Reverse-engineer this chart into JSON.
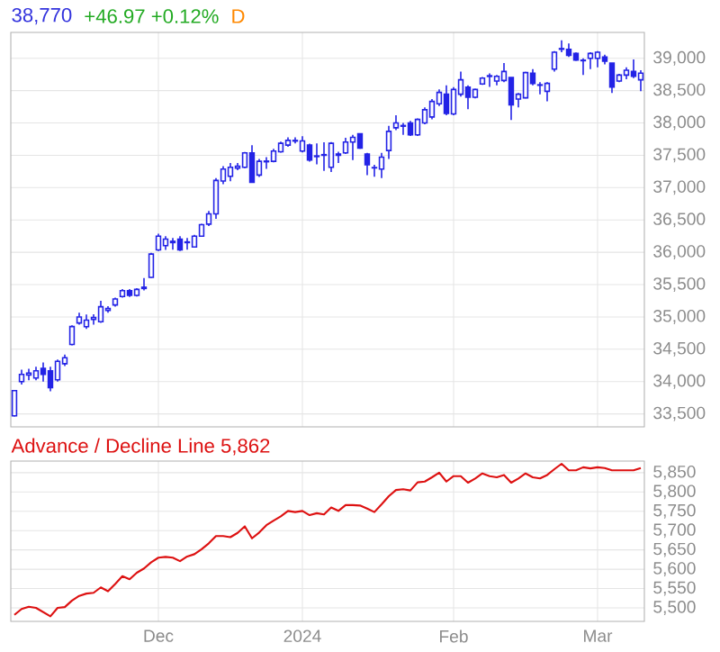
{
  "chart_data": [
    {
      "type": "candlestick",
      "title": "38,770",
      "subtitle": "+46.97 +0.12%",
      "annotations": [
        "D"
      ],
      "color": "#2323e6",
      "categories": [
        null,
        null,
        null,
        null,
        null,
        null,
        null,
        null,
        null,
        null,
        null,
        null,
        null,
        null,
        null,
        null,
        null,
        null,
        null,
        null,
        null,
        null,
        null,
        null,
        null,
        null,
        null,
        null,
        null,
        null,
        null,
        null,
        null,
        null,
        null,
        null,
        null,
        null,
        null,
        null,
        null,
        null,
        null,
        null,
        null,
        null,
        null,
        null,
        null,
        null,
        null,
        null,
        null,
        null,
        null,
        null,
        null,
        null,
        null,
        null,
        null,
        null,
        null,
        null,
        null,
        null,
        null,
        null,
        null,
        null,
        null,
        null,
        null,
        null,
        null,
        null,
        null,
        null,
        null,
        null,
        null,
        null,
        null,
        null,
        null,
        null,
        null,
        null
      ],
      "ohlc": [
        [
          33470,
          33870,
          33460,
          33860
        ],
        [
          34000,
          34185,
          33953,
          34111
        ],
        [
          34100,
          34200,
          34020,
          34130
        ],
        [
          34055,
          34230,
          34020,
          34166
        ],
        [
          34204,
          34296,
          34000,
          34111
        ],
        [
          34166,
          34230,
          33850,
          33907
        ],
        [
          34027,
          34342,
          34000,
          34314
        ],
        [
          34277,
          34416,
          34240,
          34370
        ],
        [
          34574,
          34870,
          34560,
          34851
        ],
        [
          34907,
          35065,
          34880,
          35000
        ],
        [
          34850,
          35037,
          34815,
          34950
        ],
        [
          34960,
          35040,
          34880,
          34990
        ],
        [
          34925,
          35250,
          34910,
          35157
        ],
        [
          35100,
          35165,
          35065,
          35130
        ],
        [
          35185,
          35300,
          35160,
          35277
        ],
        [
          35315,
          35430,
          35300,
          35407
        ],
        [
          35407,
          35430,
          35310,
          35333
        ],
        [
          35333,
          35445,
          35315,
          35426
        ],
        [
          35440,
          35600,
          35410,
          35460
        ],
        [
          35611,
          35990,
          35600,
          35972
        ],
        [
          36037,
          36287,
          36018,
          36250
        ],
        [
          36102,
          36250,
          36037,
          36204
        ],
        [
          36150,
          36220,
          36040,
          36170
        ],
        [
          36204,
          36250,
          36020,
          36037
        ],
        [
          36160,
          36220,
          36040,
          36150
        ],
        [
          36083,
          36270,
          36070,
          36250
        ],
        [
          36250,
          36440,
          36240,
          36426
        ],
        [
          36435,
          36640,
          36407,
          36593
        ],
        [
          36593,
          37148,
          36518,
          37111
        ],
        [
          37102,
          37333,
          37055,
          37287
        ],
        [
          37175,
          37380,
          37100,
          37315
        ],
        [
          37300,
          37380,
          37270,
          37330
        ],
        [
          37315,
          37550,
          37300,
          37537
        ],
        [
          37537,
          37657,
          37080,
          37083
        ],
        [
          37194,
          37444,
          37166,
          37407
        ],
        [
          37400,
          37470,
          37290,
          37410
        ],
        [
          37407,
          37600,
          37390,
          37565
        ],
        [
          37555,
          37710,
          37540,
          37685
        ],
        [
          37657,
          37778,
          37630,
          37731
        ],
        [
          37720,
          37778,
          37685,
          37730
        ],
        [
          37565,
          37796,
          37546,
          37722
        ],
        [
          37657,
          37680,
          37400,
          37426
        ],
        [
          37480,
          37685,
          37360,
          37490
        ],
        [
          37500,
          37700,
          37260,
          37510
        ],
        [
          37315,
          37704,
          37240,
          37685
        ],
        [
          37500,
          37555,
          37380,
          37520
        ],
        [
          37537,
          37770,
          37520,
          37704
        ],
        [
          37704,
          37815,
          37426,
          37778
        ],
        [
          37833,
          37840,
          37600,
          37611
        ],
        [
          37518,
          37537,
          37194,
          37352
        ],
        [
          37310,
          37352,
          37167,
          37305
        ],
        [
          37287,
          37537,
          37148,
          37472
        ],
        [
          37574,
          37954,
          37444,
          37870
        ],
        [
          37926,
          38120,
          37890,
          38000
        ],
        [
          37960,
          38000,
          37815,
          37950
        ],
        [
          38000,
          38030,
          37800,
          37815
        ],
        [
          37815,
          38070,
          37800,
          38055
        ],
        [
          38000,
          38240,
          37980,
          38204
        ],
        [
          38093,
          38370,
          38055,
          38333
        ],
        [
          38296,
          38518,
          38260,
          38472
        ],
        [
          38444,
          38583,
          38120,
          38148
        ],
        [
          38139,
          38555,
          38120,
          38518
        ],
        [
          38444,
          38796,
          38407,
          38667
        ],
        [
          38555,
          38583,
          38213,
          38398
        ],
        [
          38398,
          38530,
          38380,
          38518
        ],
        [
          38602,
          38710,
          38590,
          38694
        ],
        [
          38720,
          38768,
          38556,
          38730
        ],
        [
          38648,
          38741,
          38583,
          38722
        ],
        [
          38657,
          38926,
          38630,
          38796
        ],
        [
          38704,
          38704,
          38046,
          38278
        ],
        [
          38370,
          38463,
          38240,
          38444
        ],
        [
          38389,
          38790,
          38380,
          38778
        ],
        [
          38768,
          38833,
          38583,
          38611
        ],
        [
          38590,
          38630,
          38444,
          38583
        ],
        [
          38490,
          38630,
          38333,
          38611
        ],
        [
          38833,
          39111,
          38796,
          39093
        ],
        [
          39140,
          39278,
          39093,
          39150
        ],
        [
          39139,
          39231,
          39019,
          39046
        ],
        [
          39074,
          39090,
          38960,
          38972
        ],
        [
          38970,
          39000,
          38741,
          38963
        ],
        [
          39000,
          39093,
          38833,
          39074
        ],
        [
          39000,
          39111,
          38861,
          39093
        ],
        [
          39019,
          39056,
          38907,
          38954
        ],
        [
          38926,
          38926,
          38463,
          38556
        ],
        [
          38648,
          38760,
          38630,
          38741
        ],
        [
          38741,
          38861,
          38676,
          38815
        ],
        [
          38796,
          38981,
          38694,
          38722
        ],
        [
          38667,
          38815,
          38490,
          38770
        ]
      ],
      "ylim": [
        33300,
        39400
      ],
      "yticks": [
        {
          "value": 33500,
          "label": "33,500"
        },
        {
          "value": 34000,
          "label": "34,000"
        },
        {
          "value": 34500,
          "label": "34,500"
        },
        {
          "value": 35000,
          "label": "35,000"
        },
        {
          "value": 35500,
          "label": "35,500"
        },
        {
          "value": 36000,
          "label": "36,000"
        },
        {
          "value": 36500,
          "label": "36,500"
        },
        {
          "value": 37000,
          "label": "37,000"
        },
        {
          "value": 37500,
          "label": "37,500"
        },
        {
          "value": 38000,
          "label": "38,000"
        },
        {
          "value": 38500,
          "label": "38,500"
        },
        {
          "value": 39000,
          "label": "39,000"
        }
      ],
      "grid": true,
      "tick_labels": "y"
    },
    {
      "type": "line",
      "title": "Advance / Decline Line 5,862",
      "color": "#dd1111",
      "categories": [
        null,
        null,
        null,
        null,
        null,
        null,
        null,
        null,
        null,
        null,
        null,
        null,
        null,
        null,
        null,
        null,
        null,
        null,
        null,
        null,
        "Dec",
        null,
        null,
        null,
        null,
        null,
        null,
        null,
        null,
        null,
        null,
        null,
        null,
        null,
        null,
        null,
        null,
        null,
        null,
        null,
        "2024",
        null,
        null,
        null,
        null,
        null,
        null,
        null,
        null,
        null,
        null,
        null,
        null,
        null,
        null,
        null,
        null,
        null,
        null,
        null,
        null,
        "Feb",
        null,
        null,
        null,
        null,
        null,
        null,
        null,
        null,
        null,
        null,
        null,
        null,
        null,
        null,
        null,
        null,
        null,
        null,
        null,
        "Mar",
        null,
        null,
        null,
        null,
        null,
        null
      ],
      "values": [
        5482,
        5497,
        5503,
        5500,
        5489,
        5478,
        5500,
        5502,
        5519,
        5531,
        5537,
        5539,
        5553,
        5543,
        5562,
        5582,
        5574,
        5591,
        5602,
        5618,
        5630,
        5632,
        5630,
        5621,
        5633,
        5639,
        5652,
        5667,
        5686,
        5686,
        5683,
        5694,
        5711,
        5680,
        5695,
        5714,
        5726,
        5737,
        5751,
        5748,
        5751,
        5740,
        5745,
        5742,
        5760,
        5751,
        5766,
        5766,
        5765,
        5757,
        5748,
        5768,
        5789,
        5805,
        5807,
        5804,
        5825,
        5827,
        5838,
        5850,
        5827,
        5841,
        5841,
        5824,
        5835,
        5848,
        5841,
        5838,
        5844,
        5824,
        5835,
        5848,
        5838,
        5835,
        5844,
        5859,
        5873,
        5856,
        5856,
        5864,
        5861,
        5864,
        5862,
        5856,
        5856,
        5856,
        5856,
        5862
      ],
      "ylim": [
        5465,
        5880
      ],
      "yticks": [
        {
          "value": 5500,
          "label": "5,500"
        },
        {
          "value": 5550,
          "label": "5,550"
        },
        {
          "value": 5600,
          "label": "5,600"
        },
        {
          "value": 5650,
          "label": "5,650"
        },
        {
          "value": 5700,
          "label": "5,700"
        },
        {
          "value": 5750,
          "label": "5,750"
        },
        {
          "value": 5800,
          "label": "5,800"
        },
        {
          "value": 5850,
          "label": "5,850"
        }
      ],
      "grid": true
    }
  ]
}
